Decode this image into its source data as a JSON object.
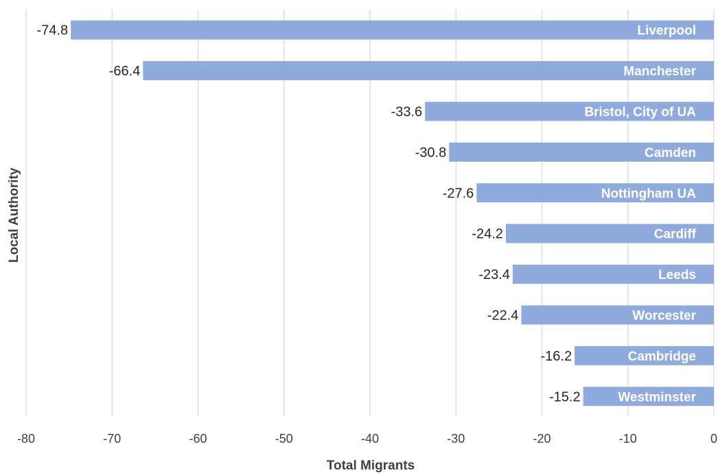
{
  "chart_data": {
    "type": "bar",
    "orientation": "horizontal",
    "categories": [
      "Liverpool",
      "Manchester",
      "Bristol, City of UA",
      "Camden",
      "Nottingham UA",
      "Cardiff",
      "Leeds",
      "Worcester",
      "Cambridge",
      "Westminster"
    ],
    "values": [
      -74.8,
      -66.4,
      -33.6,
      -30.8,
      -27.6,
      -24.2,
      -23.4,
      -22.4,
      -16.2,
      -15.2
    ],
    "value_labels": [
      "-74.8",
      "-66.4",
      "-33.6",
      "-30.8",
      "-27.6",
      "-24.2",
      "-23.4",
      "-22.4",
      "-16.2",
      "-15.2"
    ],
    "xlabel": "Total Migrants",
    "ylabel": "Local Authority",
    "xlim": [
      -80,
      0
    ],
    "xticks": [
      -80,
      -70,
      -60,
      -50,
      -40,
      -30,
      -20,
      -10,
      0
    ],
    "xtick_labels": [
      "-80",
      "-70",
      "-60",
      "-50",
      "-40",
      "-30",
      "-20",
      "-10",
      "0"
    ],
    "grid": true,
    "bar_color": "#8faadc",
    "gridline_color": "#d9d9d9",
    "legend": "none"
  }
}
